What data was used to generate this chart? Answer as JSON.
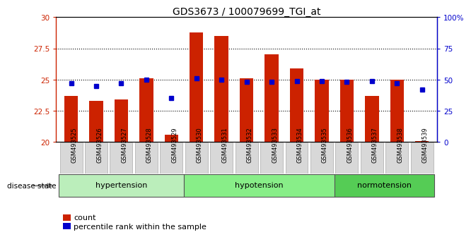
{
  "title": "GDS3673 / 100079699_TGI_at",
  "samples": [
    "GSM493525",
    "GSM493526",
    "GSM493527",
    "GSM493528",
    "GSM493529",
    "GSM493530",
    "GSM493531",
    "GSM493532",
    "GSM493533",
    "GSM493534",
    "GSM493535",
    "GSM493536",
    "GSM493537",
    "GSM493538",
    "GSM493539"
  ],
  "counts": [
    23.7,
    23.3,
    23.4,
    25.1,
    20.6,
    28.8,
    28.5,
    25.1,
    27.0,
    25.9,
    25.0,
    25.0,
    23.7,
    25.0,
    20.1
  ],
  "percentiles": [
    47,
    45,
    47,
    50,
    35,
    51,
    50,
    48,
    48,
    49,
    49,
    48,
    49,
    47,
    42
  ],
  "groups": [
    {
      "label": "hypertension",
      "start": 0,
      "end": 5
    },
    {
      "label": "hypotension",
      "start": 5,
      "end": 11
    },
    {
      "label": "normotension",
      "start": 11,
      "end": 15
    }
  ],
  "ylim_left": [
    20,
    30
  ],
  "ylim_right": [
    0,
    100
  ],
  "bar_color": "#cc2200",
  "dot_color": "#0000cc",
  "group_colors": [
    "#bbeebb",
    "#88ee88",
    "#55cc55"
  ],
  "background_color": "#ffffff",
  "legend_count_label": "count",
  "legend_percentile_label": "percentile rank within the sample",
  "disease_label": "disease state"
}
